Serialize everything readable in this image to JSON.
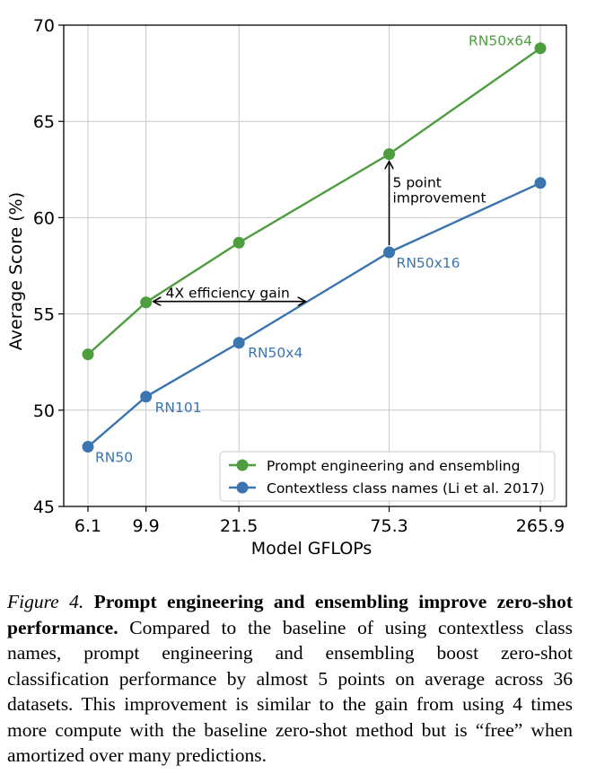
{
  "chart_data": {
    "type": "line",
    "xlabel": "Model GFLOPs",
    "ylabel": "Average Score (%)",
    "x": [
      6.1,
      9.9,
      21.5,
      75.3,
      265.9
    ],
    "x_tick_labels": [
      "6.1",
      "9.9",
      "21.5",
      "75.3",
      "265.9"
    ],
    "x_scale": "log",
    "ylim": [
      45,
      70
    ],
    "y_ticks": [
      45,
      50,
      55,
      60,
      65,
      70
    ],
    "grid": true,
    "legend_position": "lower-right",
    "series": [
      {
        "name": "Prompt engineering and ensembling",
        "color": "#4e9d3f",
        "values": [
          52.9,
          55.6,
          58.7,
          63.3,
          68.8
        ],
        "point_labels": [
          "",
          "",
          "",
          "",
          "RN50x64"
        ]
      },
      {
        "name": "Contextless class names (Li et al. 2017)",
        "color": "#3b75af",
        "values": [
          48.1,
          50.7,
          53.5,
          58.2,
          61.8
        ],
        "point_labels": [
          "RN50",
          "RN101",
          "RN50x4",
          "RN50x16",
          ""
        ]
      }
    ],
    "annotations": [
      {
        "text": "4X efficiency gain",
        "type": "horizontal-arrow",
        "from_x": 9.9,
        "to_x": 37.5,
        "y": 55.6
      },
      {
        "text_lines": [
          "5 point",
          "improvement"
        ],
        "type": "vertical-arrow",
        "x": 75.3,
        "from_y": 58.2,
        "to_y": 63.3
      }
    ]
  },
  "caption": {
    "label": "Figure 4.",
    "heading": "Prompt engineering and ensembling improve zero-shot performance.",
    "body": "Compared to the baseline of using contextless class names, prompt engineering and ensembling boost zero-shot classification performance by almost 5 points on average across 36 datasets. This improvement is similar to the gain from using 4 times more compute with the baseline zero-shot method but is “free” when amortized over many predictions."
  }
}
